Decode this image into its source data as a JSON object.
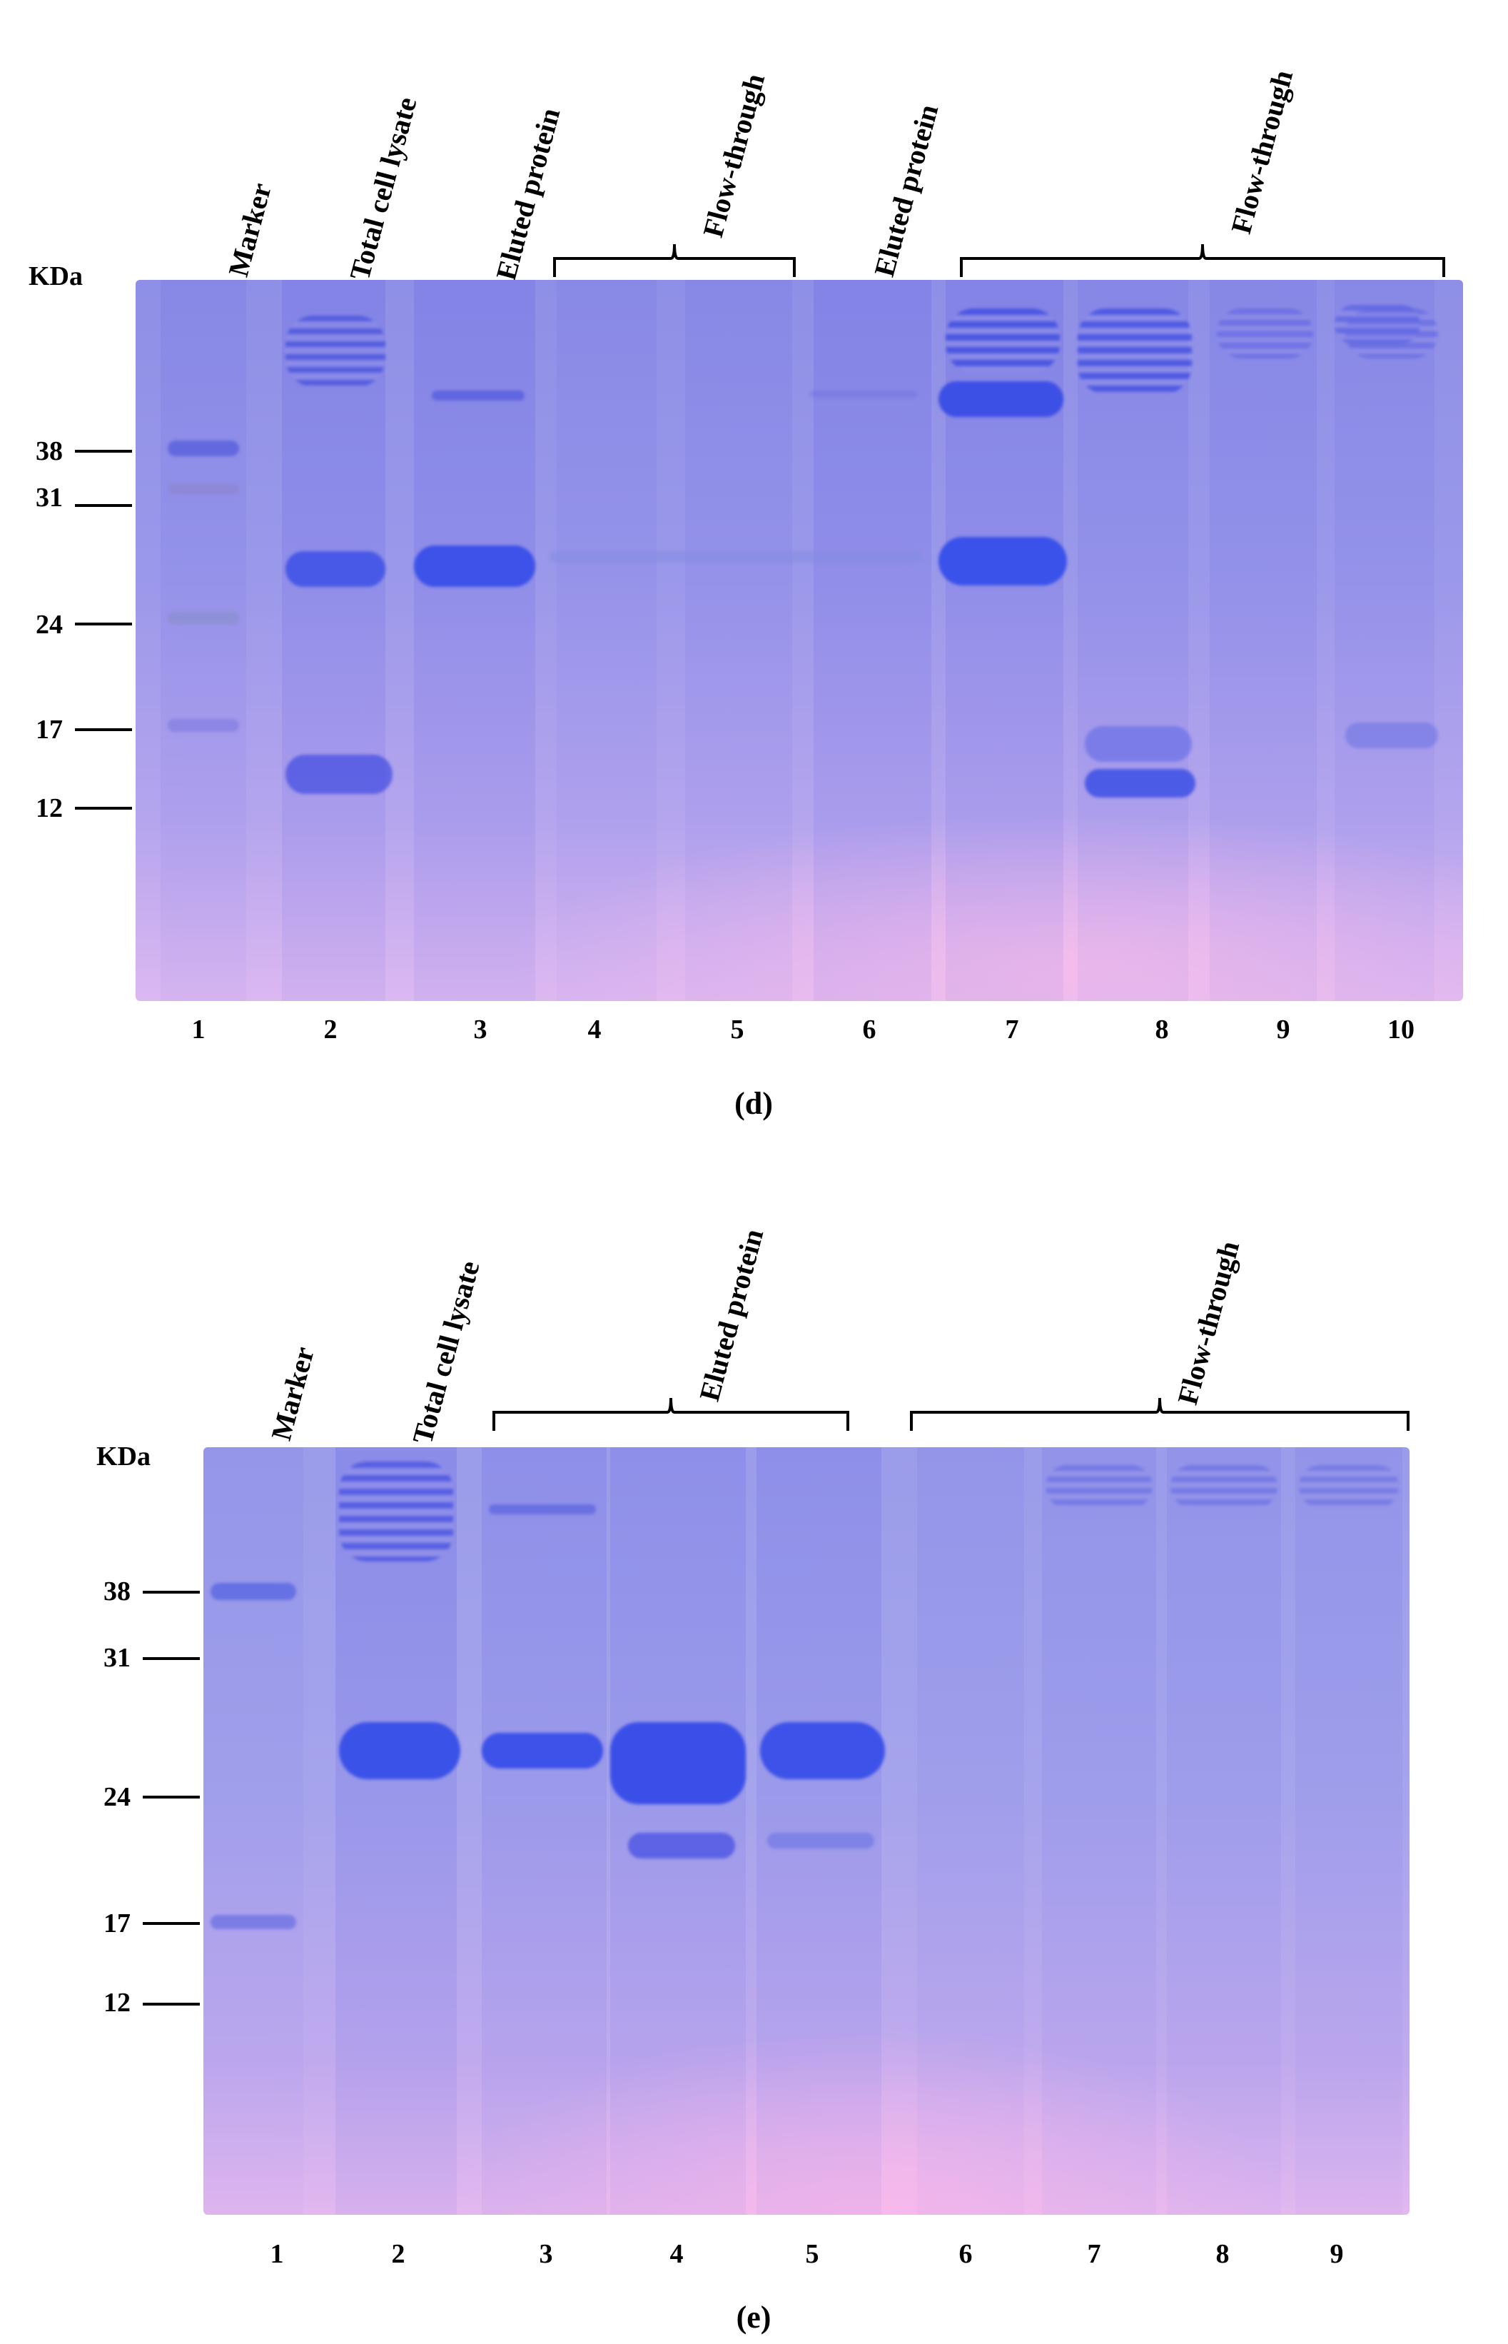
{
  "panel_d": {
    "caption": "(d)",
    "unit_label": "KDa",
    "lane_headers": [
      "Marker",
      "Total cell lysate",
      "Eluted protein",
      "Flow-through",
      "Eluted protein",
      "Flow-through"
    ],
    "marker_sizes": [
      "38",
      "31",
      "24",
      "17",
      "12"
    ],
    "lane_numbers": [
      "1",
      "2",
      "3",
      "4",
      "5",
      "6",
      "7",
      "8",
      "9",
      "10"
    ]
  },
  "panel_e": {
    "caption": "(e)",
    "unit_label": "KDa",
    "lane_headers": [
      "Marker",
      "Total cell lysate",
      "Eluted protein",
      "Flow-through"
    ],
    "marker_sizes": [
      "38",
      "31",
      "24",
      "17",
      "12"
    ],
    "lane_numbers": [
      "1",
      "2",
      "3",
      "4",
      "5",
      "6",
      "7",
      "8",
      "9"
    ]
  },
  "colors": {
    "band": "#3f4ee0",
    "gel": "#9a9aea",
    "text": "#000000"
  }
}
